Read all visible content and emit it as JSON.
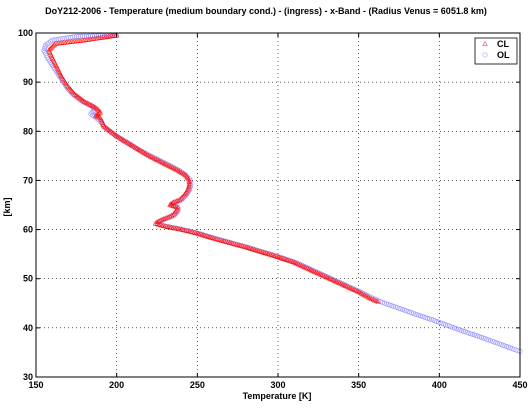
{
  "chart_data": {
    "type": "scatter",
    "title": "DoY212-2006 - Temperature (medium boundary cond.) - (ingress) - x-Band -    (Radius Venus = 6051.8 km)",
    "xlabel": "Temperature [K]",
    "ylabel": "[km]",
    "xlim": [
      150,
      450
    ],
    "ylim": [
      30,
      100
    ],
    "xticks": [
      150,
      200,
      250,
      300,
      350,
      400,
      450
    ],
    "yticks": [
      30,
      40,
      50,
      60,
      70,
      80,
      90,
      100
    ],
    "grid": true,
    "legend_position": "top-right",
    "series": [
      {
        "name": "CL",
        "color": "#ff0000",
        "marker": "triangle",
        "points": [
          [
            200,
            99.5
          ],
          [
            180,
            98.5
          ],
          [
            162,
            97.8
          ],
          [
            158,
            96.5
          ],
          [
            160,
            95
          ],
          [
            163,
            93
          ],
          [
            166,
            91
          ],
          [
            170,
            89
          ],
          [
            174,
            87.5
          ],
          [
            180,
            86
          ],
          [
            186,
            85
          ],
          [
            188,
            84.5
          ],
          [
            190,
            83.8
          ],
          [
            187,
            83.2
          ],
          [
            190,
            82.6
          ],
          [
            191,
            82
          ],
          [
            192,
            81
          ],
          [
            196,
            80
          ],
          [
            200,
            79
          ],
          [
            205,
            78
          ],
          [
            210,
            77
          ],
          [
            215,
            76
          ],
          [
            220,
            75
          ],
          [
            226,
            74
          ],
          [
            232,
            73
          ],
          [
            238,
            72
          ],
          [
            243,
            71
          ],
          [
            245,
            70
          ],
          [
            245,
            69
          ],
          [
            244,
            68
          ],
          [
            242,
            67
          ],
          [
            239,
            66
          ],
          [
            235,
            65.5
          ],
          [
            233,
            65
          ],
          [
            238,
            64.5
          ],
          [
            237,
            63.8
          ],
          [
            235,
            63
          ],
          [
            232,
            62.5
          ],
          [
            228,
            62
          ],
          [
            225,
            61.5
          ],
          [
            224,
            61.2
          ],
          [
            228,
            60.8
          ],
          [
            232,
            60.5
          ],
          [
            240,
            60
          ],
          [
            250,
            59.2
          ],
          [
            260,
            58.2
          ],
          [
            270,
            57.3
          ],
          [
            280,
            56.4
          ],
          [
            290,
            55.4
          ],
          [
            300,
            54.4
          ],
          [
            310,
            53.3
          ],
          [
            320,
            51.8
          ],
          [
            330,
            50.3
          ],
          [
            340,
            48.8
          ],
          [
            350,
            47.3
          ],
          [
            357,
            46
          ],
          [
            362,
            45.3
          ]
        ]
      },
      {
        "name": "OL",
        "color": "#8080ff",
        "marker": "circle",
        "points": [
          [
            200,
            99.5
          ],
          [
            175,
            99.3
          ],
          [
            160,
            98.5
          ],
          [
            156,
            97.5
          ],
          [
            155,
            96.5
          ],
          [
            157,
            95
          ],
          [
            161,
            93
          ],
          [
            165,
            91
          ],
          [
            169,
            89
          ],
          [
            173,
            87.5
          ],
          [
            179,
            86
          ],
          [
            185,
            85
          ],
          [
            186,
            84.3
          ],
          [
            184,
            83.5
          ],
          [
            187,
            82.8
          ],
          [
            190,
            82
          ],
          [
            192,
            81
          ],
          [
            196,
            80
          ],
          [
            200,
            79
          ],
          [
            205,
            78
          ],
          [
            210,
            77
          ],
          [
            215,
            76
          ],
          [
            221,
            75
          ],
          [
            227,
            74
          ],
          [
            233,
            73
          ],
          [
            239,
            72
          ],
          [
            243,
            71
          ],
          [
            246,
            70
          ],
          [
            246,
            69
          ],
          [
            245,
            68
          ],
          [
            243,
            67
          ],
          [
            240,
            66
          ],
          [
            236,
            65.5
          ],
          [
            234,
            65
          ],
          [
            238,
            64.5
          ],
          [
            238,
            63.8
          ],
          [
            236,
            63
          ],
          [
            233,
            62.5
          ],
          [
            229,
            62
          ],
          [
            226,
            61.5
          ],
          [
            225,
            61.2
          ],
          [
            229,
            60.8
          ],
          [
            233,
            60.5
          ],
          [
            241,
            60
          ],
          [
            251,
            59.2
          ],
          [
            261,
            58.2
          ],
          [
            271,
            57.3
          ],
          [
            281,
            56.4
          ],
          [
            291,
            55.4
          ],
          [
            301,
            54.4
          ],
          [
            311,
            53.3
          ],
          [
            321,
            51.8
          ],
          [
            331,
            50.3
          ],
          [
            341,
            48.8
          ],
          [
            351,
            47.3
          ],
          [
            359,
            46
          ],
          [
            366,
            45
          ],
          [
            375,
            44
          ],
          [
            385,
            42.8
          ],
          [
            395,
            41.7
          ],
          [
            405,
            40.5
          ],
          [
            415,
            39.3
          ],
          [
            425,
            38.2
          ],
          [
            435,
            37
          ],
          [
            445,
            35.8
          ],
          [
            450,
            35.2
          ]
        ]
      }
    ]
  }
}
